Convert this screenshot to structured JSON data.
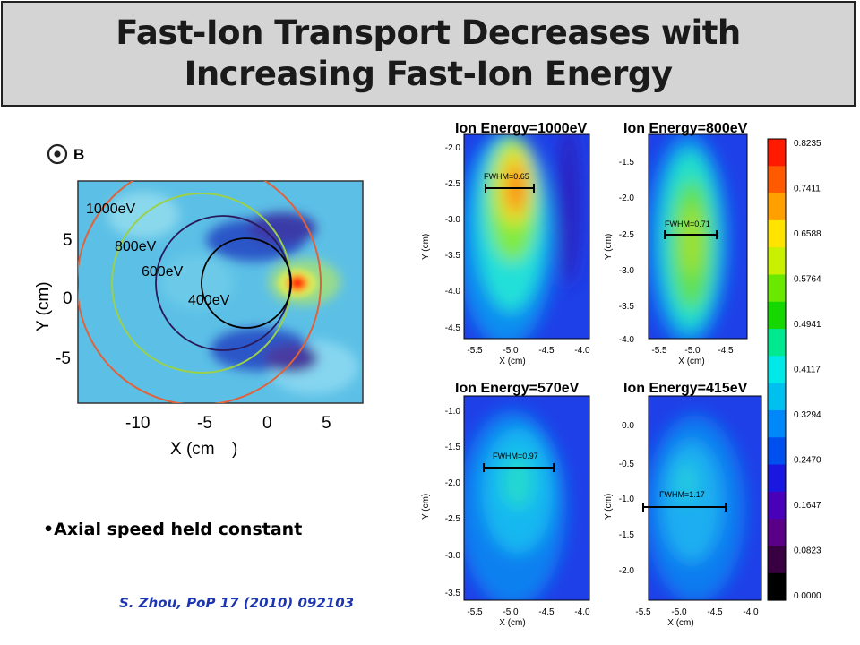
{
  "slide": {
    "title_line1": "Fast-Ion Transport Decreases with",
    "title_line2": "Increasing Fast-Ion Energy",
    "bullet": "Axial speed held constant",
    "citation": "S. Zhou, PoP 17 (2010) 092103"
  },
  "left_plot": {
    "b_label": "B",
    "xlabel": "X (cm",
    "xlabel_paren": ")",
    "ylabel": "Y (cm)",
    "xticks": [
      "-10",
      "-5",
      "0",
      "5"
    ],
    "yticks": [
      "5",
      "0",
      "-5"
    ],
    "orbit_labels": [
      "1000eV",
      "800eV",
      "600eV",
      "400eV"
    ],
    "orbit_colors": [
      "#e0623a",
      "#9bd04a",
      "#2a1a5a",
      "#000000"
    ]
  },
  "colorbar": {
    "ticks": [
      "0.8235",
      "0.7411",
      "0.6588",
      "0.5764",
      "0.4941",
      "0.4117",
      "0.3294",
      "0.2470",
      "0.1647",
      "0.0823",
      "0.0000"
    ],
    "colors": [
      "#ff1a00",
      "#ff5a00",
      "#ffa000",
      "#ffe400",
      "#c8f000",
      "#6ae800",
      "#16d800",
      "#00e890",
      "#00e8e8",
      "#00c0f0",
      "#0088f8",
      "#0050f0",
      "#1a18e0",
      "#4800b8",
      "#5a0088",
      "#380040",
      "#000000"
    ]
  },
  "panels": [
    {
      "title": "Ion Energy=1000eV",
      "fwhm": "FWHM=0.65",
      "yticks": [
        "-2.0",
        "-2.5",
        "-3.0",
        "-3.5",
        "-4.0",
        "-4.5"
      ],
      "xticks": [
        "-5.5",
        "-5.0",
        "-4.5",
        "-4.0"
      ],
      "xlabel": "X (cm)",
      "ylabel": "Y (cm)"
    },
    {
      "title": "Ion Energy=800eV",
      "fwhm": "FWHM=0.71",
      "yticks": [
        "-1.5",
        "-2.0",
        "-2.5",
        "-3.0",
        "-3.5",
        "-4.0"
      ],
      "xticks": [
        "-5.5",
        "-5.0",
        "-4.5"
      ],
      "xlabel": "X (cm)",
      "ylabel": "Y (cm)"
    },
    {
      "title": "Ion Energy=570eV",
      "fwhm": "FWHM=0.97",
      "yticks": [
        "-1.0",
        "-1.5",
        "-2.0",
        "-2.5",
        "-3.0",
        "-3.5"
      ],
      "xticks": [
        "-5.5",
        "-5.0",
        "-4.5",
        "-4.0"
      ],
      "xlabel": "X (cm)",
      "ylabel": "Y (cm)"
    },
    {
      "title": "Ion Energy=415eV",
      "fwhm": "FWHM=1.17",
      "yticks": [
        "0.0",
        "-0.5",
        "-1.0",
        "-1.5",
        "-2.0"
      ],
      "xticks": [
        "-5.5",
        "-5.0",
        "-4.5",
        "-4.0"
      ],
      "xlabel": "X (cm)",
      "ylabel": "Y (cm)"
    }
  ]
}
